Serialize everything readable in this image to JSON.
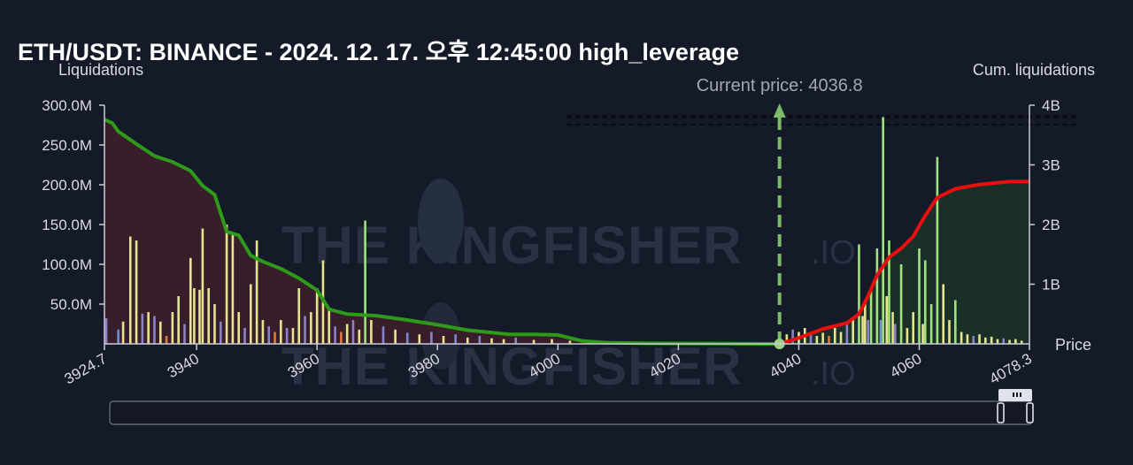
{
  "title": "ETH/USDT: BINANCE - 2024. 12. 17. 오후 12:45:00 high_leverage",
  "watermark": {
    "brand": "THE KINGFISHER",
    "suffix": ".IO"
  },
  "colors": {
    "background": "#151a28",
    "short_cum_line": "#2e9a1a",
    "long_cum_line": "#e8100e",
    "left_area": "#3a1e2a",
    "right_area": "#1a3028",
    "bar_yellow": "#e6e58f",
    "bar_green": "#9fe37f",
    "bar_purple": "#8b82c8",
    "bar_blue": "#6f8fd0",
    "bar_orange": "#e07840",
    "current_marker": "#7dbb6a"
  },
  "chart_data": {
    "type": "bar",
    "left_axis_label": "Liquidations",
    "right_axis_label": "Cum. liquidations",
    "x_axis_label": "Price",
    "xlim": [
      3924.7,
      4078.3
    ],
    "ylim_left": [
      0,
      300000000
    ],
    "ylim_right": [
      0,
      4000000000
    ],
    "x_ticks": [
      "3924.7",
      "3940",
      "3960",
      "3980",
      "4000",
      "4020",
      "4040",
      "4060",
      "4078.3"
    ],
    "x_tick_values": [
      3924.7,
      3940,
      3960,
      3980,
      4000,
      4020,
      4040,
      4060,
      4078.3
    ],
    "y_ticks_left": [
      "50.0M",
      "100.0M",
      "150.0M",
      "200.0M",
      "250.0M",
      "300.0M"
    ],
    "y_tick_values_left": [
      50000000,
      100000000,
      150000000,
      200000000,
      250000000,
      300000000
    ],
    "y_ticks_right": [
      "1B",
      "2B",
      "3B",
      "4B"
    ],
    "y_tick_values_right": [
      1000000000,
      2000000000,
      3000000000,
      4000000000
    ],
    "current_price": 4036.8,
    "current_price_label": "Current price: 4036.8",
    "series": [
      {
        "name": "Cum. liquidations (short side)",
        "kind": "cumulative",
        "color": "#2e9a1a",
        "x": [
          3924.7,
          3926,
          3927,
          3930,
          3933,
          3936,
          3939,
          3941,
          3943,
          3945,
          3947,
          3949,
          3951,
          3954,
          3957,
          3960,
          3962,
          3965,
          3970,
          3975,
          3980,
          3985,
          3988,
          3992,
          3996,
          4000,
          4004,
          4008,
          4015,
          4025,
          4036.8
        ],
        "y": [
          3760000000,
          3700000000,
          3560000000,
          3350000000,
          3150000000,
          3050000000,
          2900000000,
          2650000000,
          2500000000,
          1880000000,
          1820000000,
          1480000000,
          1380000000,
          1260000000,
          1100000000,
          900000000,
          580000000,
          500000000,
          470000000,
          400000000,
          320000000,
          230000000,
          200000000,
          160000000,
          160000000,
          150000000,
          50000000,
          20000000,
          10000000,
          5000000,
          0
        ]
      },
      {
        "name": "Cum. liquidations (long side)",
        "kind": "cumulative",
        "color": "#e8100e",
        "x": [
          4036.8,
          4040,
          4044,
          4048,
          4050,
          4051.5,
          4053,
          4055,
          4057,
          4059,
          4061,
          4063,
          4066,
          4070,
          4075,
          4078.3
        ],
        "y": [
          0,
          100000000,
          250000000,
          350000000,
          500000000,
          800000000,
          1150000000,
          1450000000,
          1600000000,
          1800000000,
          2150000000,
          2450000000,
          2600000000,
          2670000000,
          2720000000,
          2720000000
        ]
      },
      {
        "name": "Liquidations",
        "kind": "bars",
        "points": [
          {
            "x": 3925.0,
            "y": 32000000,
            "c": "purple"
          },
          {
            "x": 3927.0,
            "y": 18000000,
            "c": "blue"
          },
          {
            "x": 3927.8,
            "y": 28000000,
            "c": "yellow"
          },
          {
            "x": 3929.0,
            "y": 135000000,
            "c": "yellow"
          },
          {
            "x": 3930.0,
            "y": 130000000,
            "c": "yellow"
          },
          {
            "x": 3931.0,
            "y": 38000000,
            "c": "purple"
          },
          {
            "x": 3932.0,
            "y": 40000000,
            "c": "yellow"
          },
          {
            "x": 3933.0,
            "y": 35000000,
            "c": "purple"
          },
          {
            "x": 3934.0,
            "y": 28000000,
            "c": "yellow"
          },
          {
            "x": 3935.0,
            "y": 10000000,
            "c": "orange"
          },
          {
            "x": 3936.0,
            "y": 40000000,
            "c": "yellow"
          },
          {
            "x": 3937.0,
            "y": 60000000,
            "c": "yellow"
          },
          {
            "x": 3938.0,
            "y": 25000000,
            "c": "purple"
          },
          {
            "x": 3939.0,
            "y": 108000000,
            "c": "yellow"
          },
          {
            "x": 3939.6,
            "y": 70000000,
            "c": "yellow"
          },
          {
            "x": 3940.5,
            "y": 68000000,
            "c": "yellow"
          },
          {
            "x": 3941.0,
            "y": 145000000,
            "c": "yellow"
          },
          {
            "x": 3942.0,
            "y": 70000000,
            "c": "yellow"
          },
          {
            "x": 3943.0,
            "y": 50000000,
            "c": "yellow"
          },
          {
            "x": 3944.0,
            "y": 28000000,
            "c": "purple"
          },
          {
            "x": 3945.0,
            "y": 150000000,
            "c": "yellow"
          },
          {
            "x": 3946.0,
            "y": 140000000,
            "c": "yellow"
          },
          {
            "x": 3947.0,
            "y": 40000000,
            "c": "yellow"
          },
          {
            "x": 3948.0,
            "y": 20000000,
            "c": "purple"
          },
          {
            "x": 3949.0,
            "y": 75000000,
            "c": "yellow"
          },
          {
            "x": 3950.0,
            "y": 130000000,
            "c": "yellow"
          },
          {
            "x": 3951.0,
            "y": 30000000,
            "c": "yellow"
          },
          {
            "x": 3952.0,
            "y": 22000000,
            "c": "purple"
          },
          {
            "x": 3953.0,
            "y": 15000000,
            "c": "orange"
          },
          {
            "x": 3954.0,
            "y": 30000000,
            "c": "yellow"
          },
          {
            "x": 3955.0,
            "y": 20000000,
            "c": "purple"
          },
          {
            "x": 3956.0,
            "y": 20000000,
            "c": "yellow"
          },
          {
            "x": 3957.0,
            "y": 70000000,
            "c": "yellow"
          },
          {
            "x": 3958.0,
            "y": 35000000,
            "c": "purple"
          },
          {
            "x": 3959.0,
            "y": 40000000,
            "c": "yellow"
          },
          {
            "x": 3960.0,
            "y": 70000000,
            "c": "yellow"
          },
          {
            "x": 3961.0,
            "y": 105000000,
            "c": "yellow"
          },
          {
            "x": 3962.0,
            "y": 45000000,
            "c": "yellow"
          },
          {
            "x": 3963.0,
            "y": 22000000,
            "c": "purple"
          },
          {
            "x": 3964.0,
            "y": 15000000,
            "c": "orange"
          },
          {
            "x": 3965.0,
            "y": 25000000,
            "c": "yellow"
          },
          {
            "x": 3966.0,
            "y": 30000000,
            "c": "purple"
          },
          {
            "x": 3967.0,
            "y": 18000000,
            "c": "yellow"
          },
          {
            "x": 3968.0,
            "y": 155000000,
            "c": "green"
          },
          {
            "x": 3969.0,
            "y": 30000000,
            "c": "yellow"
          },
          {
            "x": 3971.0,
            "y": 22000000,
            "c": "purple"
          },
          {
            "x": 3973.0,
            "y": 18000000,
            "c": "yellow"
          },
          {
            "x": 3975.0,
            "y": 14000000,
            "c": "blue"
          },
          {
            "x": 3977.0,
            "y": 12000000,
            "c": "yellow"
          },
          {
            "x": 3979.0,
            "y": 15000000,
            "c": "purple"
          },
          {
            "x": 3981.0,
            "y": 10000000,
            "c": "yellow"
          },
          {
            "x": 3983.0,
            "y": 12000000,
            "c": "blue"
          },
          {
            "x": 3985.0,
            "y": 8000000,
            "c": "yellow"
          },
          {
            "x": 3987.0,
            "y": 10000000,
            "c": "purple"
          },
          {
            "x": 3989.0,
            "y": 7000000,
            "c": "yellow"
          },
          {
            "x": 3991.0,
            "y": 6000000,
            "c": "yellow"
          },
          {
            "x": 3993.0,
            "y": 8000000,
            "c": "blue"
          },
          {
            "x": 3996.0,
            "y": 5000000,
            "c": "yellow"
          },
          {
            "x": 3999.0,
            "y": 6000000,
            "c": "yellow"
          },
          {
            "x": 4002.0,
            "y": 4000000,
            "c": "yellow"
          },
          {
            "x": 4005.0,
            "y": 5000000,
            "c": "blue"
          },
          {
            "x": 4038.0,
            "y": 12000000,
            "c": "yellow"
          },
          {
            "x": 4039.0,
            "y": 18000000,
            "c": "purple"
          },
          {
            "x": 4040.0,
            "y": 15000000,
            "c": "yellow"
          },
          {
            "x": 4041.0,
            "y": 20000000,
            "c": "yellow"
          },
          {
            "x": 4042.0,
            "y": 12000000,
            "c": "purple"
          },
          {
            "x": 4043.0,
            "y": 10000000,
            "c": "yellow"
          },
          {
            "x": 4044.0,
            "y": 14000000,
            "c": "yellow"
          },
          {
            "x": 4045.0,
            "y": 10000000,
            "c": "orange"
          },
          {
            "x": 4046.0,
            "y": 20000000,
            "c": "yellow"
          },
          {
            "x": 4047.0,
            "y": 15000000,
            "c": "yellow"
          },
          {
            "x": 4048.0,
            "y": 25000000,
            "c": "purple"
          },
          {
            "x": 4049.0,
            "y": 30000000,
            "c": "yellow"
          },
          {
            "x": 4050.0,
            "y": 125000000,
            "c": "green"
          },
          {
            "x": 4050.6,
            "y": 35000000,
            "c": "yellow"
          },
          {
            "x": 4051.0,
            "y": 55000000,
            "c": "yellow"
          },
          {
            "x": 4051.5,
            "y": 30000000,
            "c": "purple"
          },
          {
            "x": 4052.0,
            "y": 70000000,
            "c": "green"
          },
          {
            "x": 4053.0,
            "y": 120000000,
            "c": "green"
          },
          {
            "x": 4053.6,
            "y": 30000000,
            "c": "blue"
          },
          {
            "x": 4054.0,
            "y": 285000000,
            "c": "green"
          },
          {
            "x": 4054.6,
            "y": 60000000,
            "c": "yellow"
          },
          {
            "x": 4055.0,
            "y": 130000000,
            "c": "green"
          },
          {
            "x": 4055.6,
            "y": 40000000,
            "c": "yellow"
          },
          {
            "x": 4056.0,
            "y": 25000000,
            "c": "purple"
          },
          {
            "x": 4057.0,
            "y": 100000000,
            "c": "green"
          },
          {
            "x": 4058.0,
            "y": 20000000,
            "c": "yellow"
          },
          {
            "x": 4059.0,
            "y": 40000000,
            "c": "yellow"
          },
          {
            "x": 4060.0,
            "y": 120000000,
            "c": "green"
          },
          {
            "x": 4060.6,
            "y": 25000000,
            "c": "yellow"
          },
          {
            "x": 4061.0,
            "y": 105000000,
            "c": "green"
          },
          {
            "x": 4062.0,
            "y": 50000000,
            "c": "green"
          },
          {
            "x": 4063.0,
            "y": 235000000,
            "c": "green"
          },
          {
            "x": 4064.0,
            "y": 75000000,
            "c": "yellow"
          },
          {
            "x": 4065.0,
            "y": 30000000,
            "c": "yellow"
          },
          {
            "x": 4066.0,
            "y": 55000000,
            "c": "green"
          },
          {
            "x": 4067.0,
            "y": 15000000,
            "c": "yellow"
          },
          {
            "x": 4068.0,
            "y": 12000000,
            "c": "yellow"
          },
          {
            "x": 4069.0,
            "y": 10000000,
            "c": "purple"
          },
          {
            "x": 4070.0,
            "y": 12000000,
            "c": "yellow"
          },
          {
            "x": 4071.0,
            "y": 8000000,
            "c": "yellow"
          },
          {
            "x": 4072.0,
            "y": 9000000,
            "c": "yellow"
          },
          {
            "x": 4073.0,
            "y": 6000000,
            "c": "yellow"
          },
          {
            "x": 4074.0,
            "y": 7000000,
            "c": "purple"
          },
          {
            "x": 4075.0,
            "y": 5000000,
            "c": "yellow"
          },
          {
            "x": 4076.0,
            "y": 6000000,
            "c": "yellow"
          },
          {
            "x": 4077.0,
            "y": 4000000,
            "c": "yellow"
          }
        ]
      }
    ],
    "legend": "none",
    "grid": false
  },
  "range_slider": {
    "selected_range": [
      3924.7,
      4078.3
    ]
  }
}
